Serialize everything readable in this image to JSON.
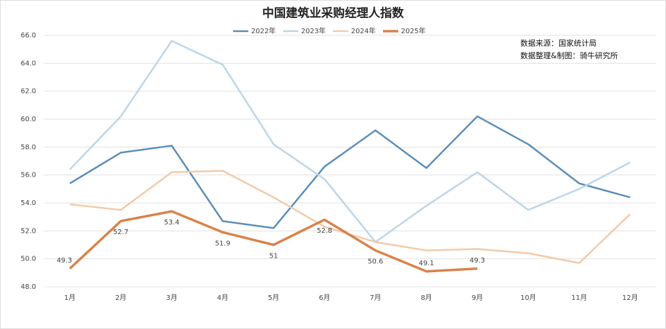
{
  "chart_data": {
    "type": "line",
    "title": "中国建筑业采购经理人指数",
    "annotations": [
      "数据来源：国家统计局",
      "数据整理&制图：骑牛研究所"
    ],
    "categories": [
      "1月",
      "2月",
      "3月",
      "4月",
      "5月",
      "6月",
      "7月",
      "8月",
      "9月",
      "10月",
      "11月",
      "12月"
    ],
    "series": [
      {
        "name": "2022年",
        "color": "#5b8db8",
        "values": [
          55.4,
          57.6,
          58.1,
          52.7,
          52.2,
          56.6,
          59.2,
          56.5,
          60.2,
          58.2,
          55.4,
          54.4
        ]
      },
      {
        "name": "2023年",
        "color": "#bcd6e8",
        "values": [
          56.4,
          60.2,
          65.6,
          63.9,
          58.2,
          55.7,
          51.2,
          53.8,
          56.2,
          53.5,
          55.0,
          56.9
        ]
      },
      {
        "name": "2024年",
        "color": "#f2caa9",
        "values": [
          53.9,
          53.5,
          56.2,
          56.3,
          54.4,
          52.3,
          51.2,
          50.6,
          50.7,
          50.4,
          49.7,
          53.2
        ]
      },
      {
        "name": "2025年",
        "color": "#d9824a",
        "values": [
          49.3,
          52.7,
          53.4,
          51.9,
          51,
          52.8,
          50.6,
          49.1,
          49.3,
          null,
          null,
          null
        ],
        "data_labels": true
      }
    ],
    "ylim": [
      48,
      66
    ],
    "yticks": [
      {
        "value": 48,
        "label": "48.0"
      },
      {
        "value": 50,
        "label": "50.0"
      },
      {
        "value": 52,
        "label": "52.0"
      },
      {
        "value": 54,
        "label": "54.0"
      },
      {
        "value": 56,
        "label": "56.0"
      },
      {
        "value": 58,
        "label": "58.0"
      },
      {
        "value": 60,
        "label": "60.0"
      },
      {
        "value": 62,
        "label": "62.0"
      },
      {
        "value": 64,
        "label": "64.0"
      },
      {
        "value": 66,
        "label": "66.0"
      }
    ],
    "grid": true,
    "legend": "top"
  }
}
